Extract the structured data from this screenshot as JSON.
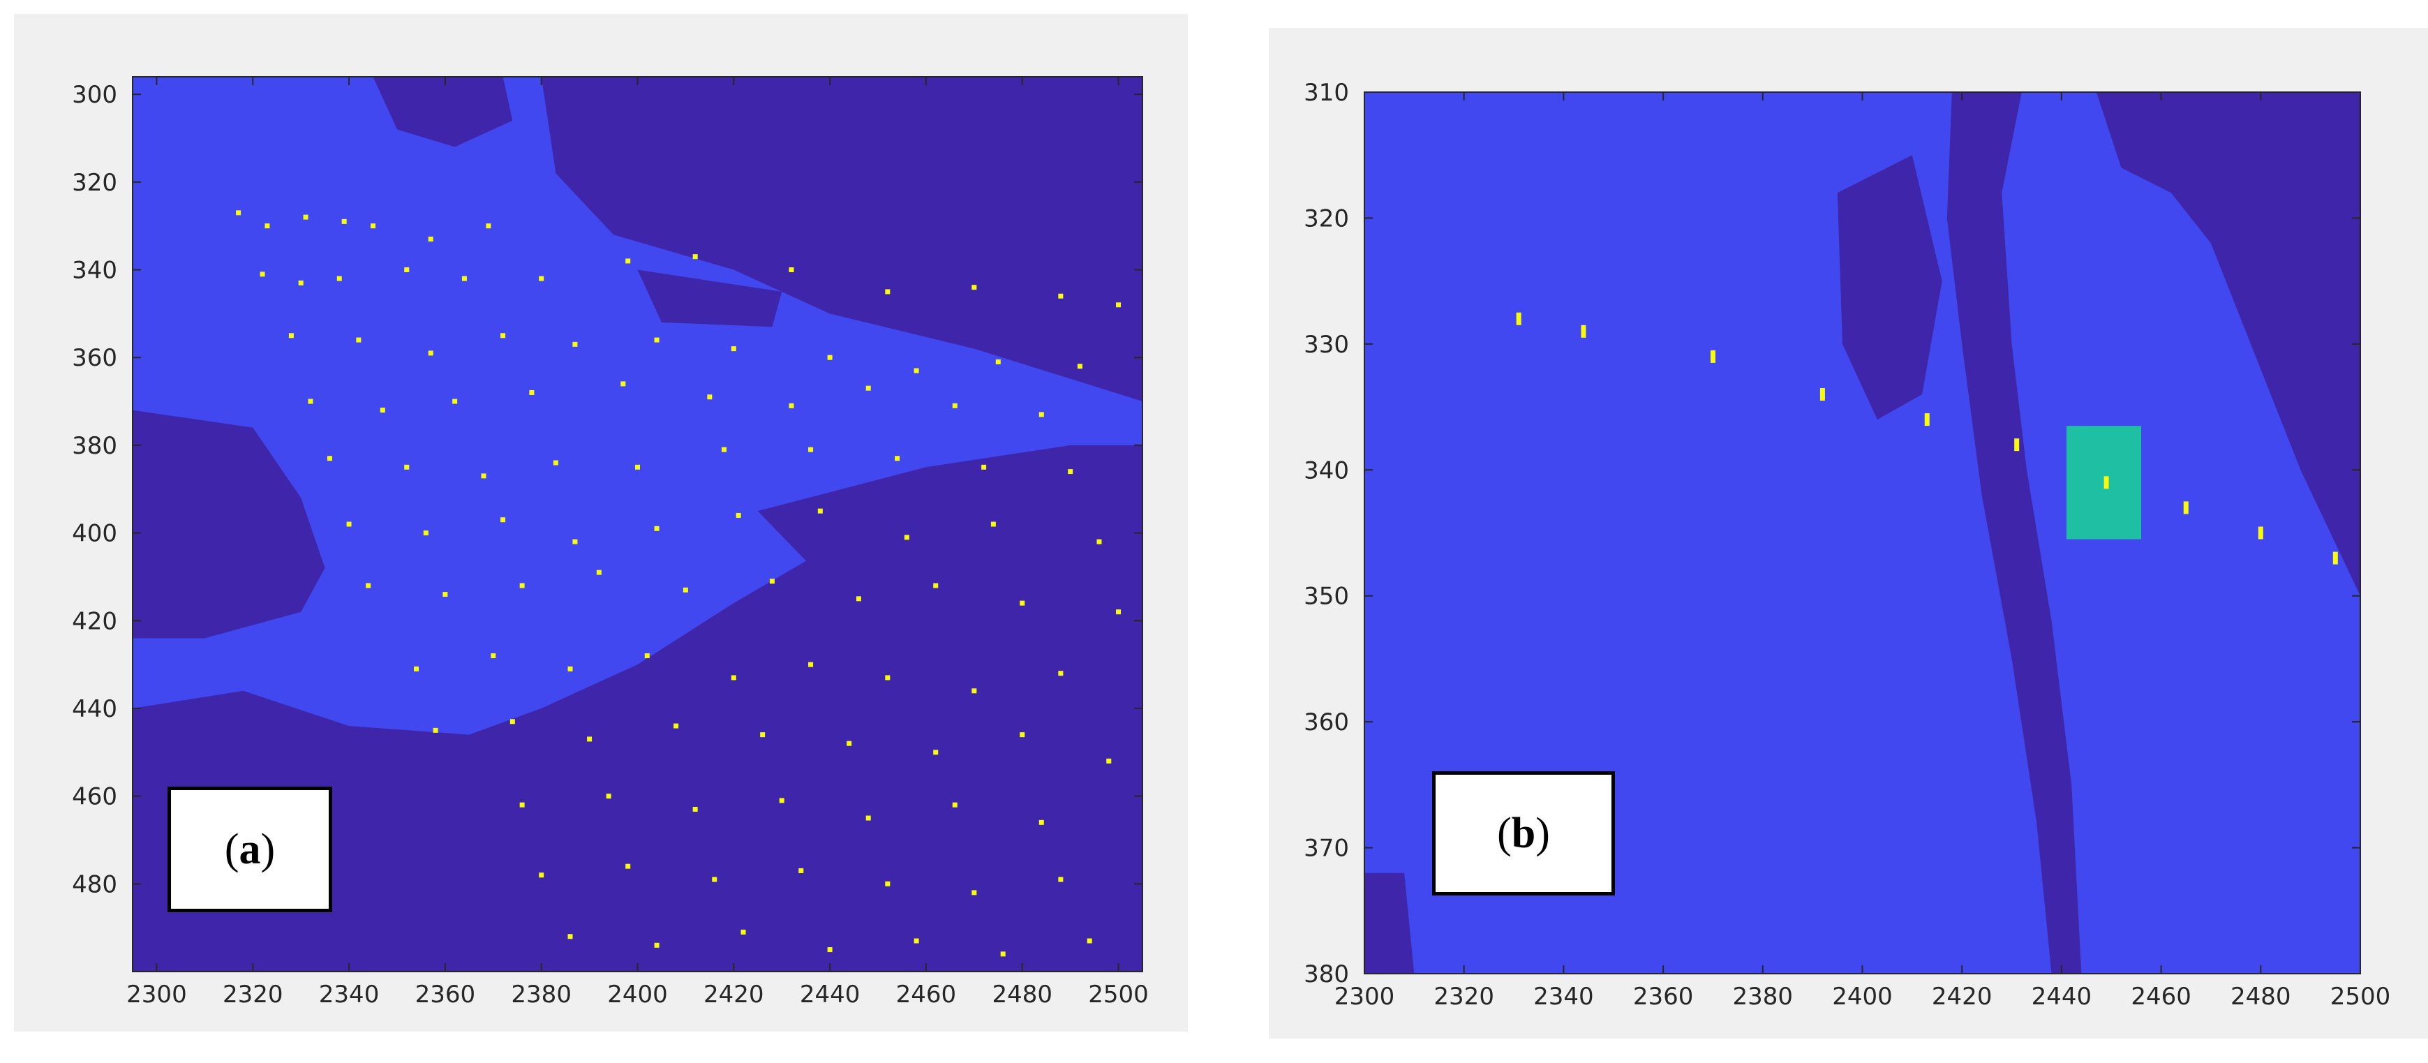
{
  "panels": [
    {
      "id": "a",
      "label_letter": "a",
      "chart_data": {
        "type": "heatmap",
        "title": "",
        "xlabel": "",
        "ylabel": "",
        "xlim": [
          2295,
          2505
        ],
        "ylim": [
          296,
          500
        ],
        "y_reversed": true,
        "xticks": [
          2300,
          2320,
          2340,
          2360,
          2380,
          2400,
          2420,
          2440,
          2460,
          2480,
          2500
        ],
        "yticks": [
          300,
          320,
          340,
          360,
          380,
          400,
          420,
          440,
          460,
          480
        ],
        "colors": {
          "background": "#4148ef",
          "dark": "#3f25aa",
          "marker": "#f9fb0e"
        },
        "dark_regions": [
          [
            [
              2380,
              296
            ],
            [
              2505,
              296
            ],
            [
              2505,
              370
            ],
            [
              2470,
              358
            ],
            [
              2440,
              350
            ],
            [
              2420,
              340
            ],
            [
              2395,
              332
            ],
            [
              2383,
              318
            ]
          ],
          [
            [
              2295,
              372
            ],
            [
              2320,
              376
            ],
            [
              2330,
              392
            ],
            [
              2335,
              408
            ],
            [
              2330,
              418
            ],
            [
              2310,
              424
            ],
            [
              2295,
              424
            ]
          ],
          [
            [
              2295,
              440
            ],
            [
              2318,
              436
            ],
            [
              2340,
              444
            ],
            [
              2365,
              446
            ],
            [
              2380,
              440
            ],
            [
              2400,
              430
            ],
            [
              2420,
              416
            ],
            [
              2445,
              400
            ],
            [
              2470,
              392
            ],
            [
              2505,
              390
            ],
            [
              2505,
              500
            ],
            [
              2295,
              500
            ]
          ],
          [
            [
              2345,
              296
            ],
            [
              2372,
              296
            ],
            [
              2374,
              306
            ],
            [
              2362,
              312
            ],
            [
              2350,
              308
            ]
          ],
          [
            [
              2425,
              395
            ],
            [
              2460,
              385
            ],
            [
              2490,
              380
            ],
            [
              2505,
              380
            ],
            [
              2505,
              392
            ],
            [
              2470,
              400
            ],
            [
              2440,
              412
            ]
          ],
          [
            [
              2400,
              340
            ],
            [
              2430,
              345
            ],
            [
              2428,
              353
            ],
            [
              2405,
              352
            ]
          ]
        ],
        "points": [
          [
            2317,
            327
          ],
          [
            2323,
            330
          ],
          [
            2331,
            328
          ],
          [
            2339,
            329
          ],
          [
            2345,
            330
          ],
          [
            2357,
            333
          ],
          [
            2369,
            330
          ],
          [
            2322,
            341
          ],
          [
            2330,
            343
          ],
          [
            2338,
            342
          ],
          [
            2352,
            340
          ],
          [
            2364,
            342
          ],
          [
            2380,
            342
          ],
          [
            2398,
            338
          ],
          [
            2412,
            337
          ],
          [
            2432,
            340
          ],
          [
            2452,
            345
          ],
          [
            2470,
            344
          ],
          [
            2488,
            346
          ],
          [
            2500,
            348
          ],
          [
            2328,
            355
          ],
          [
            2342,
            356
          ],
          [
            2357,
            359
          ],
          [
            2372,
            355
          ],
          [
            2387,
            357
          ],
          [
            2404,
            356
          ],
          [
            2420,
            358
          ],
          [
            2440,
            360
          ],
          [
            2458,
            363
          ],
          [
            2475,
            361
          ],
          [
            2492,
            362
          ],
          [
            2332,
            370
          ],
          [
            2347,
            372
          ],
          [
            2362,
            370
          ],
          [
            2378,
            368
          ],
          [
            2397,
            366
          ],
          [
            2415,
            369
          ],
          [
            2432,
            371
          ],
          [
            2448,
            367
          ],
          [
            2466,
            371
          ],
          [
            2484,
            373
          ],
          [
            2336,
            383
          ],
          [
            2352,
            385
          ],
          [
            2368,
            387
          ],
          [
            2383,
            384
          ],
          [
            2400,
            385
          ],
          [
            2418,
            381
          ],
          [
            2436,
            381
          ],
          [
            2454,
            383
          ],
          [
            2472,
            385
          ],
          [
            2490,
            386
          ],
          [
            2340,
            398
          ],
          [
            2356,
            400
          ],
          [
            2372,
            397
          ],
          [
            2387,
            402
          ],
          [
            2404,
            399
          ],
          [
            2421,
            396
          ],
          [
            2438,
            395
          ],
          [
            2456,
            401
          ],
          [
            2474,
            398
          ],
          [
            2496,
            402
          ],
          [
            2344,
            412
          ],
          [
            2360,
            414
          ],
          [
            2376,
            412
          ],
          [
            2392,
            409
          ],
          [
            2410,
            413
          ],
          [
            2428,
            411
          ],
          [
            2446,
            415
          ],
          [
            2462,
            412
          ],
          [
            2480,
            416
          ],
          [
            2500,
            418
          ],
          [
            2354,
            431
          ],
          [
            2370,
            428
          ],
          [
            2386,
            431
          ],
          [
            2402,
            428
          ],
          [
            2420,
            433
          ],
          [
            2436,
            430
          ],
          [
            2452,
            433
          ],
          [
            2470,
            436
          ],
          [
            2488,
            432
          ],
          [
            2358,
            445
          ],
          [
            2374,
            443
          ],
          [
            2390,
            447
          ],
          [
            2408,
            444
          ],
          [
            2426,
            446
          ],
          [
            2444,
            448
          ],
          [
            2462,
            450
          ],
          [
            2480,
            446
          ],
          [
            2498,
            452
          ],
          [
            2376,
            462
          ],
          [
            2394,
            460
          ],
          [
            2412,
            463
          ],
          [
            2430,
            461
          ],
          [
            2448,
            465
          ],
          [
            2466,
            462
          ],
          [
            2484,
            466
          ],
          [
            2380,
            478
          ],
          [
            2398,
            476
          ],
          [
            2416,
            479
          ],
          [
            2434,
            477
          ],
          [
            2452,
            480
          ],
          [
            2470,
            482
          ],
          [
            2488,
            479
          ],
          [
            2386,
            492
          ],
          [
            2404,
            494
          ],
          [
            2422,
            491
          ],
          [
            2440,
            495
          ],
          [
            2458,
            493
          ],
          [
            2476,
            496
          ],
          [
            2494,
            493
          ]
        ]
      }
    },
    {
      "id": "b",
      "label_letter": "b",
      "chart_data": {
        "type": "heatmap",
        "title": "",
        "xlabel": "",
        "ylabel": "",
        "xlim": [
          2300,
          2500
        ],
        "ylim": [
          310,
          380
        ],
        "y_reversed": true,
        "xticks": [
          2300,
          2320,
          2340,
          2360,
          2380,
          2400,
          2420,
          2440,
          2460,
          2480,
          2500
        ],
        "yticks": [
          310,
          320,
          330,
          340,
          350,
          360,
          370,
          380
        ],
        "colors": {
          "background": "#4148ef",
          "dark": "#3f25aa",
          "marker": "#f9fb0e",
          "highlight": "#1fbfa3"
        },
        "dark_regions": [
          [
            [
              2418,
              310
            ],
            [
              2432,
              310
            ],
            [
              2428,
              318
            ],
            [
              2430,
              330
            ],
            [
              2433,
              340
            ],
            [
              2438,
              352
            ],
            [
              2442,
              365
            ],
            [
              2444,
              380
            ],
            [
              2438,
              380
            ],
            [
              2435,
              368
            ],
            [
              2430,
              355
            ],
            [
              2424,
              342
            ],
            [
              2420,
              330
            ],
            [
              2417,
              320
            ]
          ],
          [
            [
              2447,
              310
            ],
            [
              2500,
              310
            ],
            [
              2500,
              350
            ],
            [
              2488,
              340
            ],
            [
              2478,
              330
            ],
            [
              2470,
              322
            ],
            [
              2462,
              318
            ],
            [
              2452,
              316
            ]
          ],
          [
            [
              2395,
              318
            ],
            [
              2410,
              315
            ],
            [
              2416,
              325
            ],
            [
              2412,
              334
            ],
            [
              2403,
              336
            ],
            [
              2396,
              330
            ]
          ],
          [
            [
              2300,
              372
            ],
            [
              2308,
              372
            ],
            [
              2310,
              380
            ],
            [
              2300,
              380
            ]
          ]
        ],
        "points": [
          [
            2331,
            328
          ],
          [
            2344,
            329
          ],
          [
            2370,
            331
          ],
          [
            2392,
            334
          ],
          [
            2413,
            336
          ],
          [
            2431,
            338
          ],
          [
            2449,
            341
          ],
          [
            2465,
            343
          ],
          [
            2480,
            345
          ],
          [
            2495,
            347
          ]
        ],
        "highlight_rect": {
          "x": [
            2441,
            2456
          ],
          "y": [
            336.5,
            345.5
          ]
        }
      }
    }
  ]
}
